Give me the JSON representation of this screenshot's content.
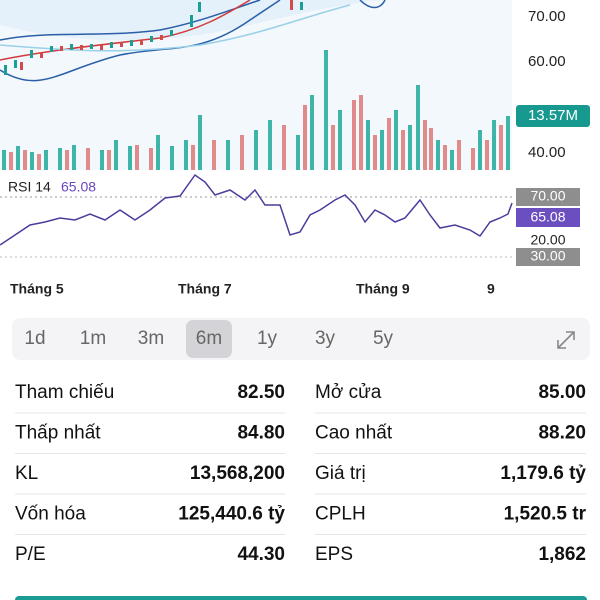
{
  "price_axis": {
    "labels": [
      "70.00",
      "60.00",
      "40.00"
    ]
  },
  "volume_badge": "13.57M",
  "rsi": {
    "label": "RSI 14",
    "value": "65.08",
    "axis_labels": [
      "70.00",
      "65.08",
      "20.00",
      "30.00"
    ]
  },
  "time_axis": [
    "Tháng 5",
    "Tháng 7",
    "Tháng 9",
    "9"
  ],
  "periods": [
    "1d",
    "1m",
    "3m",
    "6m",
    "1y",
    "3y",
    "5y"
  ],
  "stats": {
    "rows": [
      [
        {
          "label": "Tham chiếu",
          "value": "82.50"
        },
        {
          "label": "Mở cửa",
          "value": "85.00"
        }
      ],
      [
        {
          "label": "Thấp nhất",
          "value": "84.80"
        },
        {
          "label": "Cao nhất",
          "value": "88.20"
        }
      ],
      [
        {
          "label": "KL",
          "value": "13,568,200"
        },
        {
          "label": "Giá trị",
          "value": "1,179.6 tỷ"
        }
      ],
      [
        {
          "label": "Vốn hóa",
          "value": "125,440.6 tỷ"
        },
        {
          "label": "CPLH",
          "value": "1,520.5 tr"
        }
      ],
      [
        {
          "label": "P/E",
          "value": "44.30"
        },
        {
          "label": "EPS",
          "value": "1,862"
        }
      ]
    ]
  }
}
